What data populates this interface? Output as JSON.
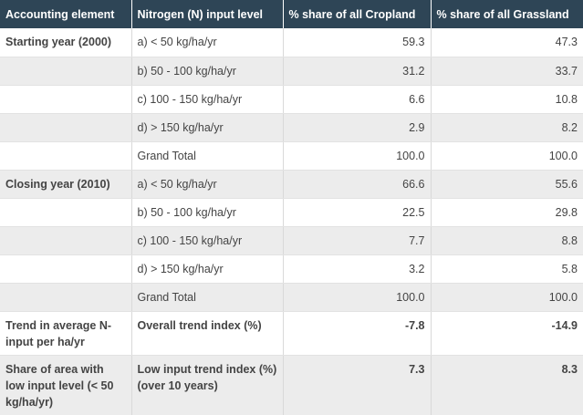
{
  "headers": [
    "Accounting element",
    "Nitrogen (N) input level",
    "% share of all Cropland",
    "% share of all Grassland"
  ],
  "rows": [
    {
      "element": "Starting year (2000)",
      "level": "a) < 50 kg/ha/yr",
      "cropland": "59.3",
      "grassland": "47.3"
    },
    {
      "element": "",
      "level": "b) 50 - 100 kg/ha/yr",
      "cropland": "31.2",
      "grassland": "33.7"
    },
    {
      "element": "",
      "level": "c) 100 - 150 kg/ha/yr",
      "cropland": "6.6",
      "grassland": "10.8"
    },
    {
      "element": "",
      "level": "d) > 150 kg/ha/yr",
      "cropland": "2.9",
      "grassland": "8.2"
    },
    {
      "element": "",
      "level": "Grand Total",
      "cropland": "100.0",
      "grassland": "100.0"
    },
    {
      "element": "Closing year (2010)",
      "level": "a) < 50 kg/ha/yr",
      "cropland": "66.6",
      "grassland": "55.6"
    },
    {
      "element": "",
      "level": "b) 50 - 100 kg/ha/yr",
      "cropland": "22.5",
      "grassland": "29.8"
    },
    {
      "element": "",
      "level": "c) 100 - 150 kg/ha/yr",
      "cropland": "7.7",
      "grassland": "8.8"
    },
    {
      "element": "",
      "level": "d) > 150 kg/ha/yr",
      "cropland": "3.2",
      "grassland": "5.8"
    },
    {
      "element": "",
      "level": "Grand Total",
      "cropland": "100.0",
      "grassland": "100.0"
    },
    {
      "element": "Trend in average N-input per ha/yr",
      "level": "Overall trend index (%)",
      "cropland": "-7.8",
      "grassland": "-14.9"
    },
    {
      "element": "Share of area with low input level (< 50 kg/ha/yr)",
      "level": "Low input trend index (%) (over 10 years)",
      "cropland": "7.3",
      "grassland": "8.3"
    }
  ]
}
